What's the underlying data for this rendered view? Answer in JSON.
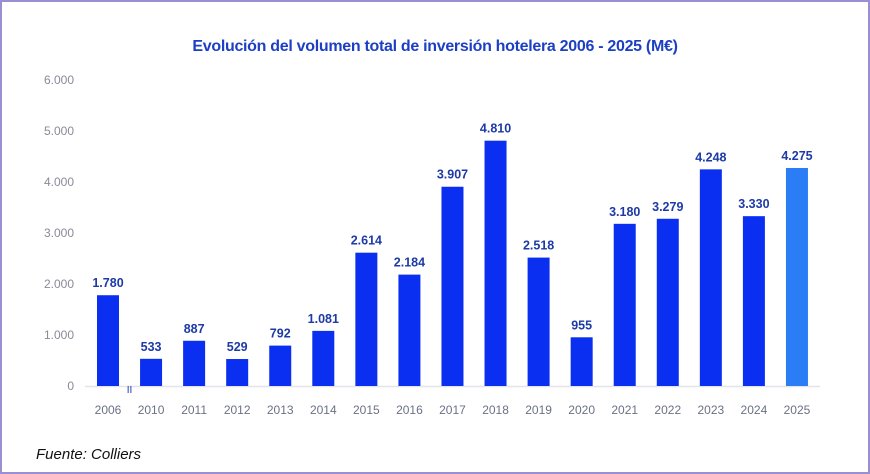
{
  "chart_data": {
    "type": "bar",
    "title": "Evolución del volumen total de inversión hotelera 2006 - 2025 (M€)",
    "categories": [
      "2006",
      "2010",
      "2011",
      "2012",
      "2013",
      "2014",
      "2015",
      "2016",
      "2017",
      "2018",
      "2019",
      "2020",
      "2021",
      "2022",
      "2023",
      "2024",
      "2025"
    ],
    "values": [
      1780,
      533,
      887,
      529,
      792,
      1081,
      2614,
      2184,
      3907,
      4810,
      2518,
      955,
      3180,
      3279,
      4248,
      3330,
      4275
    ],
    "data_labels": [
      "1.780",
      "533",
      "887",
      "529",
      "792",
      "1.081",
      "2.614",
      "2.184",
      "3.907",
      "4.810",
      "2.518",
      "955",
      "3.180",
      "3.279",
      "4.248",
      "3.330",
      "4.275"
    ],
    "yticks": [
      0,
      1000,
      2000,
      3000,
      4000,
      5000,
      6000
    ],
    "ytick_labels": [
      "0",
      "1.000",
      "2.000",
      "3.000",
      "4.000",
      "5.000",
      "6.000"
    ],
    "ylim": [
      0,
      6000
    ],
    "grid": false,
    "axis_break_marker": "II",
    "colors": {
      "bar": "#0b2ff0",
      "highlight": "#2b7df6"
    },
    "highlight_category": "2025"
  },
  "source": "Fuente: Colliers"
}
